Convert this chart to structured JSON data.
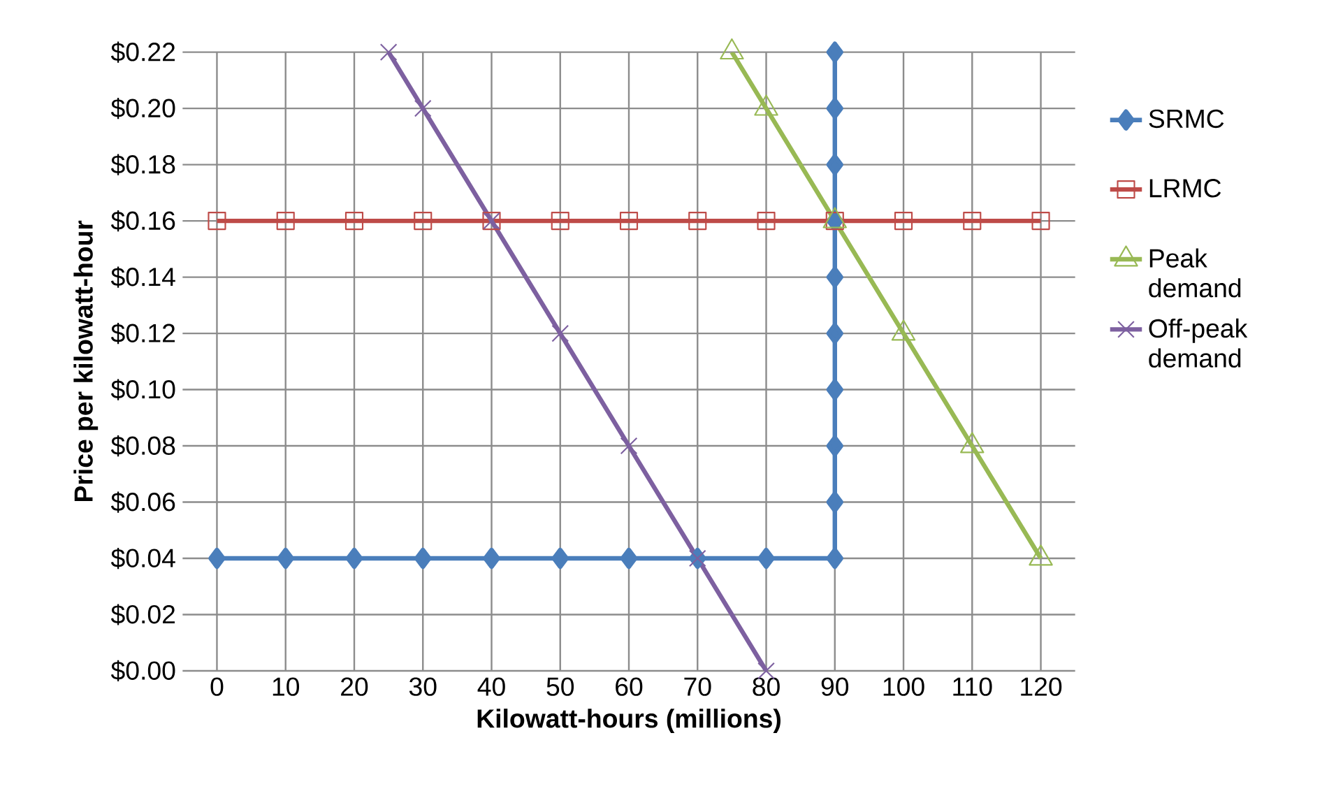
{
  "chart_data": {
    "type": "line",
    "xlabel": "Kilowatt-hours (millions)",
    "ylabel": "Price per kilowatt-hour",
    "xlim": [
      -5,
      125
    ],
    "xticks": [
      0,
      10,
      20,
      30,
      40,
      50,
      60,
      70,
      80,
      90,
      100,
      110,
      120
    ],
    "ylim": [
      0,
      0.22
    ],
    "yticks": [
      {
        "value": 0,
        "label": "$0.00"
      },
      {
        "value": 0.02,
        "label": "$0.02"
      },
      {
        "value": 0.04,
        "label": "$0.04"
      },
      {
        "value": 0.06,
        "label": "$0.06"
      },
      {
        "value": 0.08,
        "label": "$0.08"
      },
      {
        "value": 0.1,
        "label": "$0.10"
      },
      {
        "value": 0.12,
        "label": "$0.12"
      },
      {
        "value": 0.14,
        "label": "$0.14"
      },
      {
        "value": 0.16,
        "label": "$0.16"
      },
      {
        "value": 0.18,
        "label": "$0.18"
      },
      {
        "value": 0.2,
        "label": "$0.20"
      },
      {
        "value": 0.22,
        "label": "$0.22"
      }
    ],
    "grid": true,
    "legend": "right",
    "series": [
      {
        "name": "SRMC",
        "color": "#4a7ebb",
        "marker": "diamond",
        "x": [
          0,
          10,
          20,
          30,
          40,
          50,
          60,
          70,
          80,
          90,
          90,
          90,
          90,
          90,
          90,
          90,
          90,
          90,
          90
        ],
        "values": [
          0.04,
          0.04,
          0.04,
          0.04,
          0.04,
          0.04,
          0.04,
          0.04,
          0.04,
          0.04,
          0.06,
          0.08,
          0.1,
          0.12,
          0.14,
          0.16,
          0.18,
          0.2,
          0.22
        ]
      },
      {
        "name": "LRMC",
        "color": "#be4b48",
        "marker": "square",
        "x": [
          0,
          10,
          20,
          30,
          40,
          50,
          60,
          70,
          80,
          90,
          100,
          110,
          120
        ],
        "values": [
          0.16,
          0.16,
          0.16,
          0.16,
          0.16,
          0.16,
          0.16,
          0.16,
          0.16,
          0.16,
          0.16,
          0.16,
          0.16
        ]
      },
      {
        "name": "Peak demand",
        "color": "#98b954",
        "marker": "triangle",
        "x": [
          75,
          80,
          90,
          100,
          110,
          120
        ],
        "values": [
          0.22,
          0.2,
          0.16,
          0.12,
          0.08,
          0.04
        ]
      },
      {
        "name": "Off-peak demand",
        "color": "#7d60a0",
        "marker": "cross",
        "x": [
          25,
          30,
          40,
          50,
          60,
          70,
          80
        ],
        "values": [
          0.22,
          0.2,
          0.16,
          0.12,
          0.08,
          0.04,
          0
        ]
      }
    ]
  }
}
